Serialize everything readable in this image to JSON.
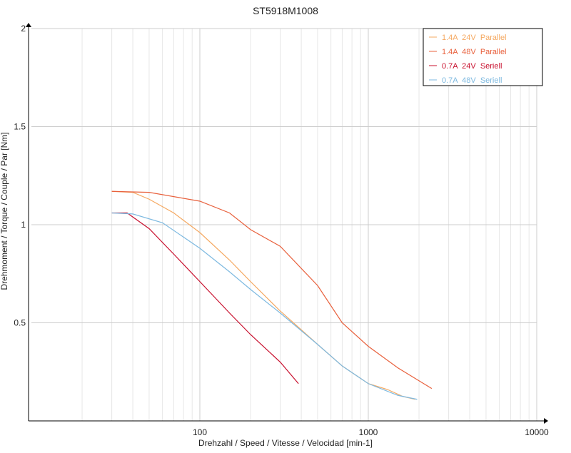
{
  "chart_data": {
    "type": "line",
    "title": "ST5918M1008",
    "x_label": "Drehzahl / Speed / Vitesse / Velocidad [min-1]",
    "y_label": "Drehmoment / Torque / Couple / Par [Nm]",
    "xlim": [
      10,
      10000
    ],
    "xticks": [
      100,
      1000,
      10000
    ],
    "x_log": true,
    "minor_grid": true,
    "ylim": [
      0,
      2
    ],
    "yticks": [
      0.5,
      1,
      1.5,
      2
    ],
    "grid": true,
    "legend": "top-right",
    "series": [
      {
        "name": "1.4A  24V  Parallel",
        "color": "#f5a860",
        "x": [
          30,
          40,
          50,
          70,
          100,
          150,
          200,
          300,
          500,
          700,
          1000,
          1300,
          1600,
          1900
        ],
        "values": [
          1.17,
          1.165,
          1.13,
          1.06,
          0.96,
          0.82,
          0.71,
          0.56,
          0.39,
          0.28,
          0.19,
          0.16,
          0.125,
          0.11
        ]
      },
      {
        "name": "1.4A  48V  Parallel",
        "color": "#e8603c",
        "x": [
          30,
          50,
          100,
          150,
          200,
          300,
          500,
          700,
          1000,
          1500,
          2380
        ],
        "values": [
          1.17,
          1.165,
          1.12,
          1.06,
          0.975,
          0.89,
          0.69,
          0.5,
          0.38,
          0.27,
          0.165
        ]
      },
      {
        "name": "0.7A  24V  Seriell",
        "color": "#c8102e",
        "x": [
          30,
          37,
          50,
          70,
          100,
          150,
          200,
          300,
          385
        ],
        "values": [
          1.06,
          1.06,
          0.98,
          0.85,
          0.71,
          0.55,
          0.44,
          0.3,
          0.19
        ]
      },
      {
        "name": "0.7A  48V  Seriell",
        "color": "#7db9e0",
        "x": [
          30,
          40,
          60,
          100,
          150,
          200,
          300,
          500,
          700,
          1000,
          1500,
          1950
        ],
        "values": [
          1.06,
          1.055,
          1.01,
          0.88,
          0.76,
          0.67,
          0.55,
          0.39,
          0.28,
          0.19,
          0.13,
          0.11
        ]
      }
    ]
  }
}
